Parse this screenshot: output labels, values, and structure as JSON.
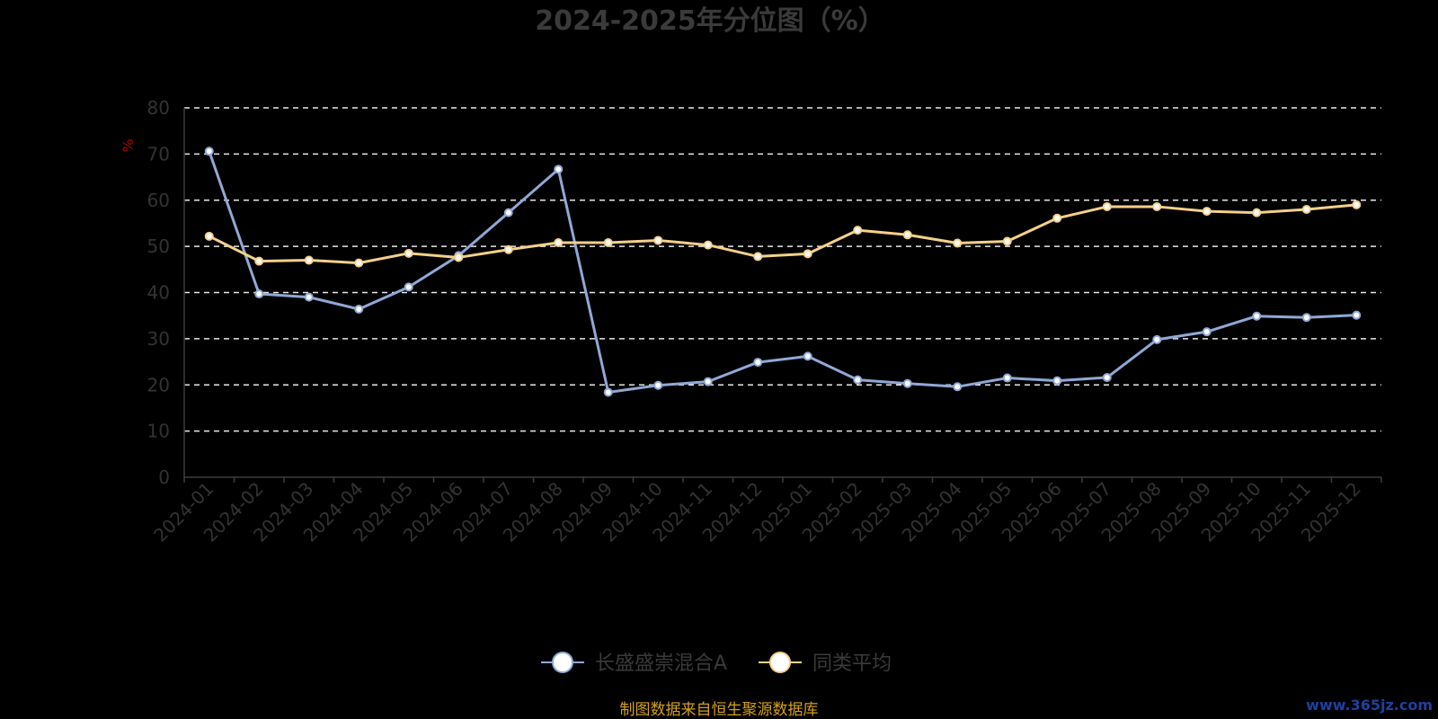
{
  "chart_data": {
    "type": "line",
    "title": "2024-2025年分位图（%）",
    "ylabel": "%",
    "xlabel": "",
    "ylim": [
      0,
      80
    ],
    "yticks": [
      0,
      10,
      20,
      30,
      40,
      50,
      60,
      70,
      80
    ],
    "grid": true,
    "legend_position": "bottom",
    "categories": [
      "2024-01",
      "2024-02",
      "2024-03",
      "2024-04",
      "2024-05",
      "2024-06",
      "2024-07",
      "2024-08",
      "2024-09",
      "2024-10",
      "2024-11",
      "2024-12",
      "2025-01",
      "2025-02",
      "2025-03",
      "2025-04",
      "2025-05",
      "2025-06",
      "2025-07",
      "2025-08",
      "2025-09",
      "2025-10",
      "2025-11",
      "2025-12"
    ],
    "series": [
      {
        "name": "长盛盛崇混合A",
        "color": "#8fa8d6",
        "values": [
          70.6,
          39.7,
          39.0,
          36.4,
          41.2,
          48.0,
          57.3,
          66.7,
          18.4,
          19.9,
          20.7,
          24.9,
          26.2,
          21.1,
          20.3,
          19.6,
          21.5,
          20.9,
          21.6,
          29.8,
          31.5,
          34.9,
          34.6,
          35.1
        ]
      },
      {
        "name": "同类平均",
        "color": "#f5d08a",
        "values": [
          52.2,
          46.8,
          47.0,
          46.4,
          48.5,
          47.6,
          49.3,
          50.8,
          50.8,
          51.3,
          50.3,
          47.8,
          48.4,
          53.5,
          52.5,
          50.7,
          51.1,
          56.1,
          58.6,
          58.6,
          57.6,
          57.3,
          58.0,
          59.0
        ]
      }
    ]
  },
  "footer": {
    "source": "制图数据来自恒生聚源数据库",
    "watermark": "www.365jz.com"
  }
}
